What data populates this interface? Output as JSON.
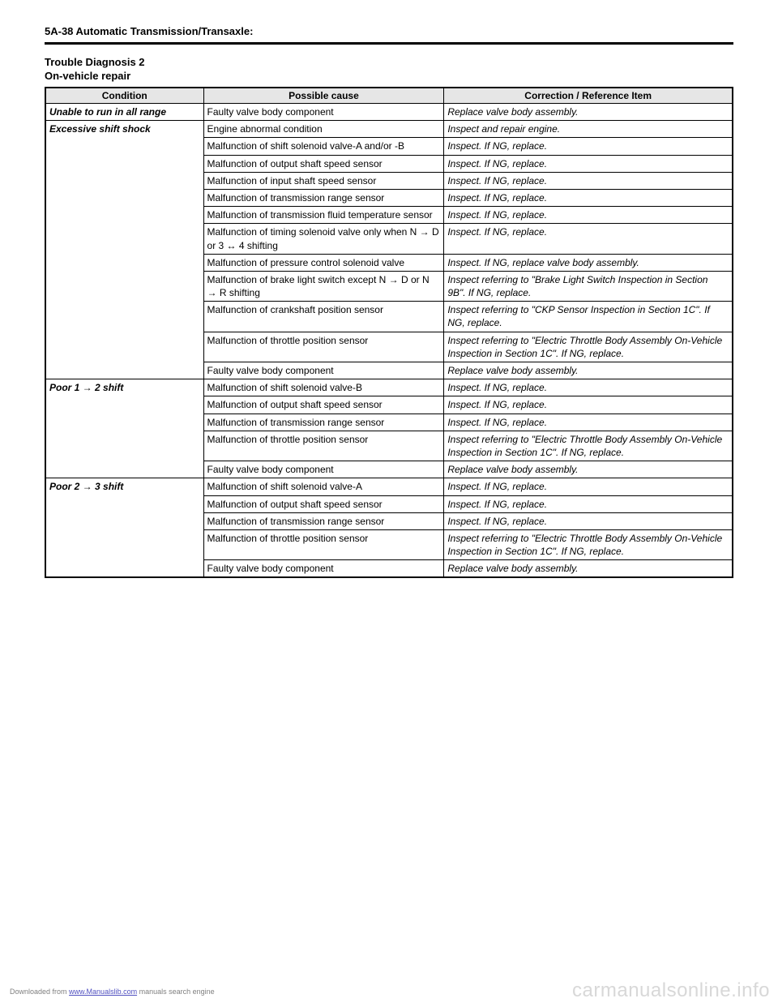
{
  "header": {
    "page_ref": "5A-38   Automatic Transmission/Transaxle:"
  },
  "section": {
    "title": "Trouble Diagnosis 2",
    "subtitle": "On-vehicle repair"
  },
  "table": {
    "headers": {
      "condition": "Condition",
      "cause": "Possible cause",
      "correction": "Correction / Reference Item"
    },
    "groups": [
      {
        "condition": "Unable to run in all range",
        "rows": [
          {
            "cause": "Faulty valve body component",
            "correction": "Replace valve body assembly."
          }
        ]
      },
      {
        "condition": "Excessive shift shock",
        "rows": [
          {
            "cause": "Engine abnormal condition",
            "correction": "Inspect and repair engine."
          },
          {
            "cause": "Malfunction of shift solenoid valve-A and/or -B",
            "correction": "Inspect. If NG, replace."
          },
          {
            "cause": "Malfunction of output shaft speed sensor",
            "correction": "Inspect. If NG, replace."
          },
          {
            "cause": "Malfunction of input shaft speed sensor",
            "correction": "Inspect. If NG, replace."
          },
          {
            "cause": "Malfunction of transmission range sensor",
            "correction": "Inspect. If NG, replace."
          },
          {
            "cause": "Malfunction of transmission fluid temperature sensor",
            "correction": "Inspect. If NG, replace."
          },
          {
            "cause": "Malfunction of timing solenoid valve only when N → D or 3 ↔ 4 shifting",
            "correction": "Inspect. If NG, replace."
          },
          {
            "cause": "Malfunction of pressure control solenoid valve",
            "correction": "Inspect. If NG, replace valve body assembly."
          },
          {
            "cause": "Malfunction of brake light switch except N → D or N → R shifting",
            "correction": "Inspect referring to \"Brake Light Switch Inspection in Section 9B\". If NG, replace."
          },
          {
            "cause": "Malfunction of crankshaft position sensor",
            "correction": "Inspect referring to \"CKP Sensor Inspection in Section 1C\". If NG, replace."
          },
          {
            "cause": "Malfunction of throttle position sensor",
            "correction": "Inspect referring to \"Electric Throttle Body Assembly On-Vehicle Inspection in Section 1C\". If NG, replace."
          },
          {
            "cause": "Faulty valve body component",
            "correction": "Replace valve body assembly."
          }
        ]
      },
      {
        "condition": "Poor 1 → 2 shift",
        "rows": [
          {
            "cause": "Malfunction of shift solenoid valve-B",
            "correction": "Inspect. If NG, replace."
          },
          {
            "cause": "Malfunction of output shaft speed sensor",
            "correction": "Inspect. If NG, replace."
          },
          {
            "cause": "Malfunction of transmission range sensor",
            "correction": "Inspect. If NG, replace."
          },
          {
            "cause": "Malfunction of throttle position sensor",
            "correction": "Inspect referring to \"Electric Throttle Body Assembly On-Vehicle Inspection in Section 1C\". If NG, replace."
          },
          {
            "cause": "Faulty valve body component",
            "correction": "Replace valve body assembly."
          }
        ]
      },
      {
        "condition": "Poor 2 → 3 shift",
        "rows": [
          {
            "cause": "Malfunction of shift solenoid valve-A",
            "correction": "Inspect. If NG, replace."
          },
          {
            "cause": "Malfunction of output shaft speed sensor",
            "correction": "Inspect. If NG, replace."
          },
          {
            "cause": "Malfunction of transmission range sensor",
            "correction": "Inspect. If NG, replace."
          },
          {
            "cause": "Malfunction of throttle position sensor",
            "correction": "Inspect referring to \"Electric Throttle Body Assembly On-Vehicle Inspection in Section 1C\". If NG, replace."
          },
          {
            "cause": "Faulty valve body component",
            "correction": "Replace valve body assembly."
          }
        ]
      }
    ]
  },
  "footer": {
    "prefix": "Downloaded from ",
    "link_text": "www.Manualslib.com",
    "suffix": " manuals search engine"
  },
  "watermark": "carmanualsonline.info"
}
